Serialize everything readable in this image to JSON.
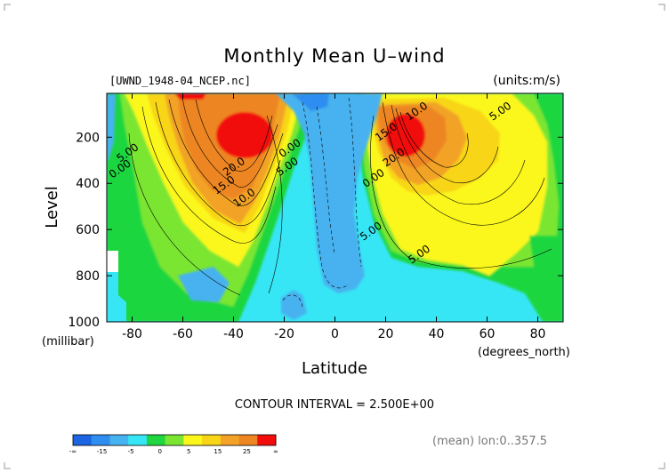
{
  "header": {
    "title": "Monthly Mean U–wind",
    "dataset": "[UWND_1948-04_NCEP.nc]",
    "units": "(units:m/s)"
  },
  "footer": {
    "contour_note": "CONTOUR INTERVAL = 2.500E+00",
    "averaging_note": "(mean) lon:0..357.5"
  },
  "chart_data": {
    "type": "heatmap",
    "title": "Monthly Mean U–wind",
    "xlabel": "Latitude",
    "x_units": "(degrees_north)",
    "ylabel": "Level",
    "y_units": "(millibar)",
    "xlim": [
      -90,
      90
    ],
    "ylim": [
      1000,
      10
    ],
    "xticks": [
      -80,
      -60,
      -40,
      -20,
      0,
      20,
      40,
      60,
      80
    ],
    "xtick_labels": [
      "-80",
      "-60",
      "-40",
      "-20",
      "0",
      "20",
      "40",
      "60",
      "80"
    ],
    "yticks": [
      200,
      400,
      600,
      800,
      1000
    ],
    "ytick_labels": [
      "200",
      "400",
      "600",
      "800",
      "1000"
    ],
    "contour_interval": 2.5,
    "jets": [
      {
        "lat": -32,
        "level": 180,
        "u": 27.5
      },
      {
        "lat": 27,
        "level": 180,
        "u": 27.5
      },
      {
        "lat": 57,
        "level": 300,
        "u": 17.5
      }
    ],
    "contour_labels": [
      {
        "text": "10.0",
        "lat": 33,
        "level": 100
      },
      {
        "text": "5.00",
        "lat": 66,
        "level": 100
      },
      {
        "text": "15.0",
        "lat": 21,
        "level": 190
      },
      {
        "text": "20.0",
        "lat": 24,
        "level": 300
      },
      {
        "text": "20.0",
        "lat": -39,
        "level": 340
      },
      {
        "text": "15.0",
        "lat": -43,
        "level": 420
      },
      {
        "text": "10.0",
        "lat": -35,
        "level": 475
      },
      {
        "text": "5.00",
        "lat": -18,
        "level": 340
      },
      {
        "text": "0.00",
        "lat": -17,
        "level": 260
      },
      {
        "text": "5.00",
        "lat": -81,
        "level": 280
      },
      {
        "text": "0.00",
        "lat": -84,
        "level": 350
      },
      {
        "text": "0.00",
        "lat": 16,
        "level": 390
      },
      {
        "text": "5.00",
        "lat": 15,
        "level": 620
      },
      {
        "text": "5.00",
        "lat": 34,
        "level": 720
      }
    ],
    "colorbar": {
      "colors": [
        "#1b64e2",
        "#2f8df0",
        "#46b2ef",
        "#37e6f5",
        "#1fd640",
        "#7ae632",
        "#fbf71a",
        "#f8d516",
        "#f2a327",
        "#ed8620",
        "#f20c0c"
      ],
      "labels": [
        "-∞",
        "-15",
        "-5",
        "0",
        "5",
        "15",
        "25",
        "∞"
      ]
    }
  }
}
